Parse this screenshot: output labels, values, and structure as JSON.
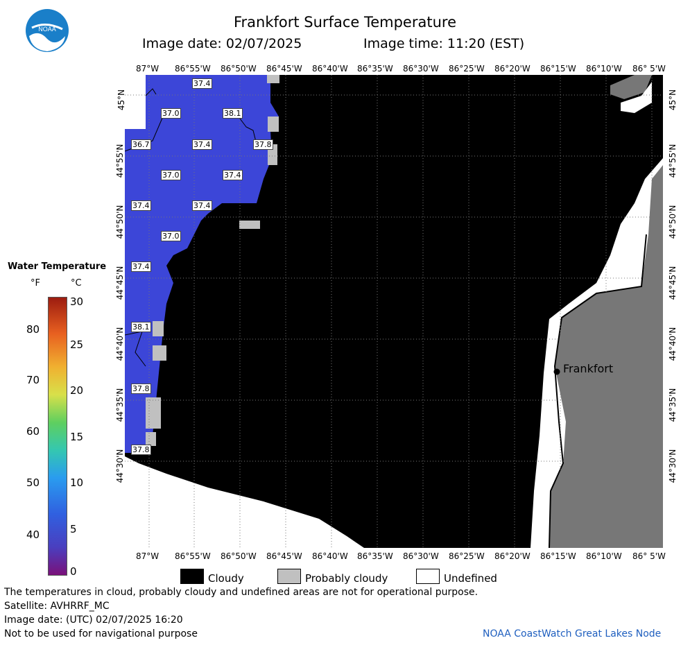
{
  "header": {
    "title": "Frankfort Surface Temperature",
    "image_date": "Image date: 02/07/2025",
    "image_time": "Image time: 11:20 (EST)"
  },
  "logo": {
    "text": "NOAA"
  },
  "map": {
    "x_ticks": [
      "87°W",
      "86°55'W",
      "86°50'W",
      "86°45'W",
      "86°40'W",
      "86°35'W",
      "86°30'W",
      "86°25'W",
      "86°20'W",
      "86°15'W",
      "86°10'W",
      "86° 5'W"
    ],
    "y_ticks": [
      "45°N",
      "44°55'N",
      "44°50'N",
      "44°45'N",
      "44°40'N",
      "44°35'N",
      "44°30'N"
    ],
    "city_label": "Frankfort",
    "temperature_labels": [
      "37.4",
      "37.0",
      "38.1",
      "36.7",
      "37.4",
      "37.8",
      "37.0",
      "37.4",
      "37.4",
      "37.4",
      "37.0",
      "37.4",
      "38.1",
      "37.8",
      "37.8"
    ],
    "colors": {
      "cloudy": "#000000",
      "probably_cloudy": "#c0c0c0",
      "undefined": "#ffffff",
      "land": "#777777",
      "water": "#3c46d8"
    }
  },
  "colorbar": {
    "title": "Water Temperature",
    "unit_f": "°F",
    "unit_c": "°C",
    "f_ticks": [
      "80",
      "70",
      "60",
      "50",
      "40"
    ],
    "c_ticks": [
      "30",
      "25",
      "20",
      "15",
      "10",
      "5",
      "0"
    ]
  },
  "legend": {
    "cloudy": "Cloudy",
    "probably_cloudy": "Probably cloudy",
    "undefined": "Undefined"
  },
  "footer": {
    "disclaimer": "The temperatures in cloud, probably cloudy and undefined areas are not for operational purpose.",
    "satellite": "Satellite: AVHRRF_MC",
    "image_date_utc": "Image date: (UTC) 02/07/2025  16:20",
    "nav_warning": "Not to be used for navigational purpose",
    "credit": "NOAA CoastWatch Great Lakes Node"
  }
}
